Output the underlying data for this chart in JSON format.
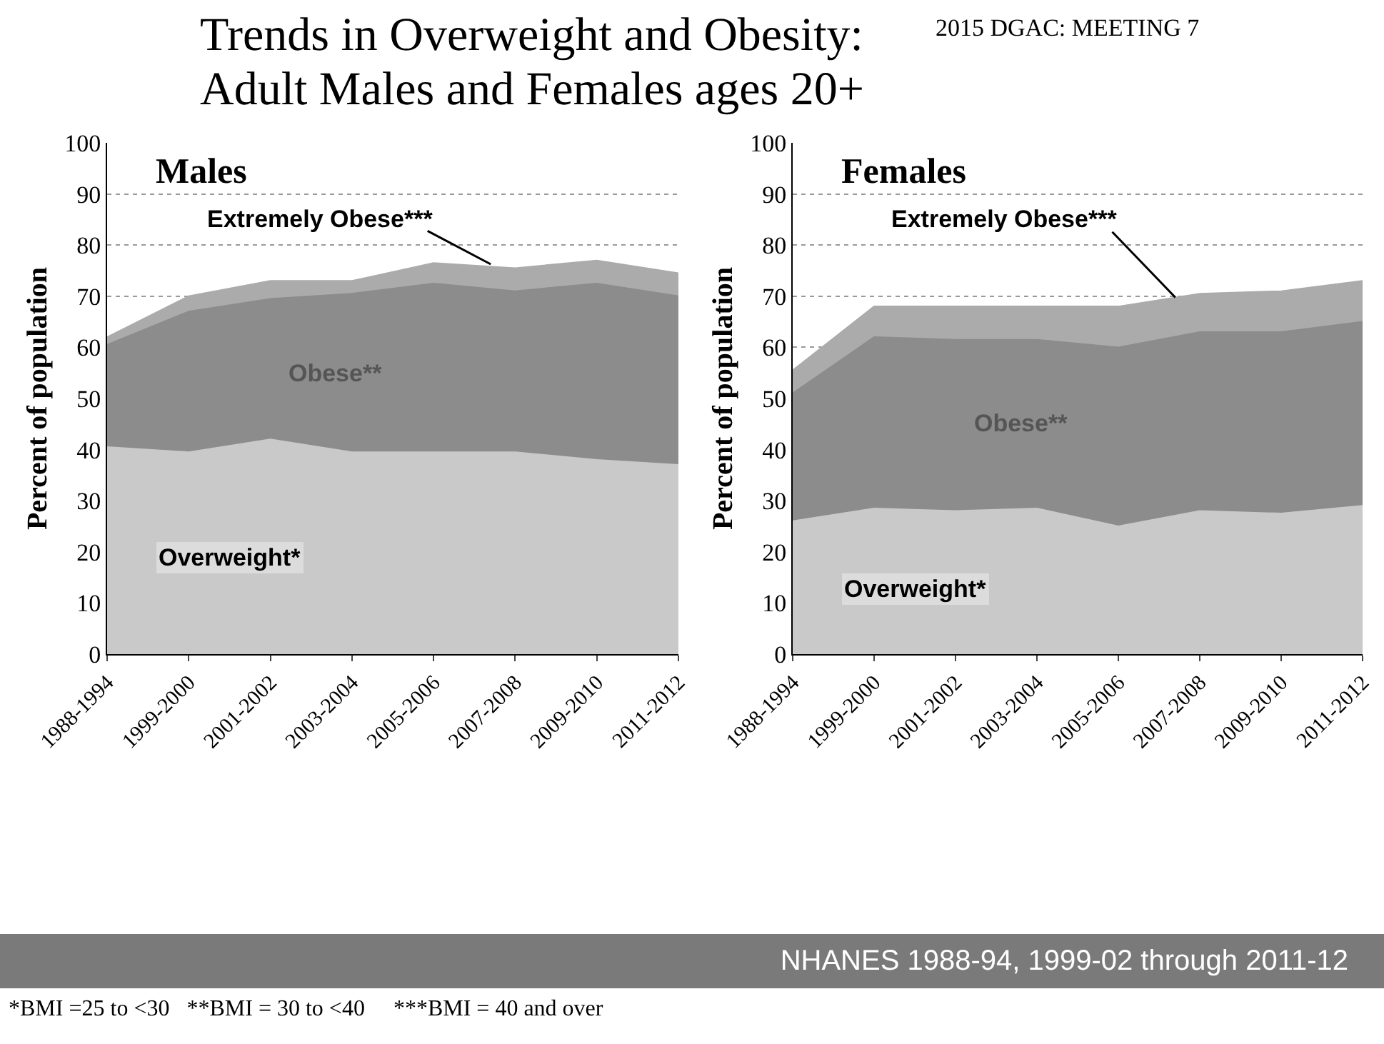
{
  "chart_data": [
    {
      "type": "area",
      "title": "Trends in Overweight and Obesity: Adult Males and Females ages 20+",
      "subtitle": "Males",
      "ylabel": "Percent of population",
      "annotations": [
        "2015 DGAC: MEETING 7",
        "NHANES 1988-94, 1999-02 through 2011-12",
        "*BMI =25 to <30   **BMI = 30 to <40     ***BMI = 40 and over"
      ],
      "categories": [
        "1988-1994",
        "1999-2000",
        "2001-2002",
        "2003-2004",
        "2005-2006",
        "2007-2008",
        "2009-2010",
        "2011-2012"
      ],
      "stacked": true,
      "ylim": [
        0,
        100
      ],
      "yticks": [
        0,
        10,
        20,
        30,
        40,
        50,
        60,
        70,
        80,
        90,
        100
      ],
      "grid": "y",
      "legend": false,
      "series": [
        {
          "name": "Overweight*",
          "color": "#c9c9c9",
          "values": [
            40.5,
            39.5,
            42,
            39.5,
            39.5,
            39.5,
            38,
            37
          ]
        },
        {
          "name": "Obese**",
          "color": "#8c8c8c",
          "values": [
            20,
            27.5,
            27.5,
            31,
            33,
            31.5,
            34.5,
            33
          ]
        },
        {
          "name": "Extremely Obese***",
          "color": "#ababab",
          "values": [
            1.5,
            3,
            3.5,
            2.5,
            4,
            4.5,
            4.5,
            4.5
          ]
        }
      ]
    },
    {
      "type": "area",
      "title": "Females",
      "ylabel": "Percent of population",
      "categories": [
        "1988-1994",
        "1999-2000",
        "2001-2002",
        "2003-2004",
        "2005-2006",
        "2007-2008",
        "2009-2010",
        "2011-2012"
      ],
      "stacked": true,
      "ylim": [
        0,
        100
      ],
      "yticks": [
        0,
        10,
        20,
        30,
        40,
        50,
        60,
        70,
        80,
        90,
        100
      ],
      "grid": "y",
      "legend": false,
      "series": [
        {
          "name": "Overweight*",
          "color": "#c9c9c9",
          "values": [
            26,
            28.5,
            28,
            28.5,
            25,
            28,
            27.5,
            29
          ]
        },
        {
          "name": "Obese**",
          "color": "#8c8c8c",
          "values": [
            25,
            33.5,
            33.5,
            33,
            35,
            35,
            35.5,
            36
          ]
        },
        {
          "name": "Extremely Obese***",
          "color": "#ababab",
          "values": [
            4.5,
            6,
            6.5,
            6.5,
            8,
            7.5,
            8,
            8
          ]
        }
      ]
    }
  ]
}
